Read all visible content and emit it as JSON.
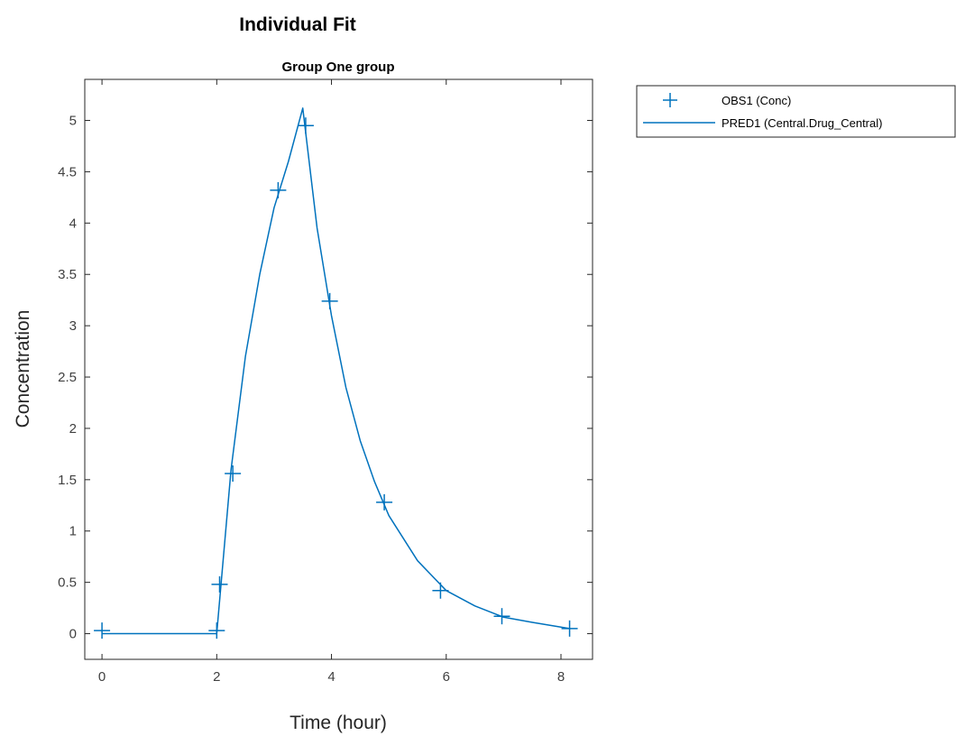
{
  "figure_title": "Individual Fit",
  "chart_data": {
    "type": "line",
    "title": "Group One group",
    "xlabel": "Time (hour)",
    "ylabel": "Concentration",
    "xlim": [
      -0.3,
      8.55
    ],
    "ylim": [
      -0.25,
      5.4
    ],
    "xticks": [
      0,
      2,
      4,
      6,
      8
    ],
    "yticks": [
      0,
      0.5,
      1,
      1.5,
      2,
      2.5,
      3,
      3.5,
      4,
      4.5,
      5
    ],
    "xtick_labels": [
      "0",
      "2",
      "4",
      "6",
      "8"
    ],
    "ytick_labels": [
      "0",
      "0.5",
      "1",
      "1.5",
      "2",
      "2.5",
      "3",
      "3.5",
      "4",
      "4.5",
      "5"
    ],
    "grid": false,
    "legend_position": "outside-top-right",
    "series": [
      {
        "name": "OBS1 (Conc)",
        "kind": "markers",
        "marker": "plus",
        "color": "#0072bd",
        "x": [
          0.0,
          2.0,
          2.05,
          2.28,
          3.07,
          3.55,
          3.97,
          4.92,
          5.9,
          6.97,
          8.15
        ],
        "y": [
          0.03,
          0.03,
          0.48,
          1.56,
          4.32,
          4.95,
          3.24,
          1.28,
          0.42,
          0.17,
          0.05
        ]
      },
      {
        "name": "PRED1 (Central.Drug_Central)",
        "kind": "line",
        "color": "#0072bd",
        "x": [
          0.0,
          2.0,
          2.25,
          2.5,
          2.75,
          3.0,
          3.25,
          3.5,
          3.75,
          4.0,
          4.25,
          4.5,
          4.75,
          5.0,
          5.5,
          6.0,
          6.5,
          7.0,
          7.5,
          8.15
        ],
        "y": [
          0.0,
          0.0,
          1.6,
          2.7,
          3.5,
          4.15,
          4.6,
          5.12,
          3.95,
          3.1,
          2.4,
          1.88,
          1.48,
          1.15,
          0.71,
          0.42,
          0.27,
          0.16,
          0.11,
          0.05
        ]
      }
    ]
  }
}
